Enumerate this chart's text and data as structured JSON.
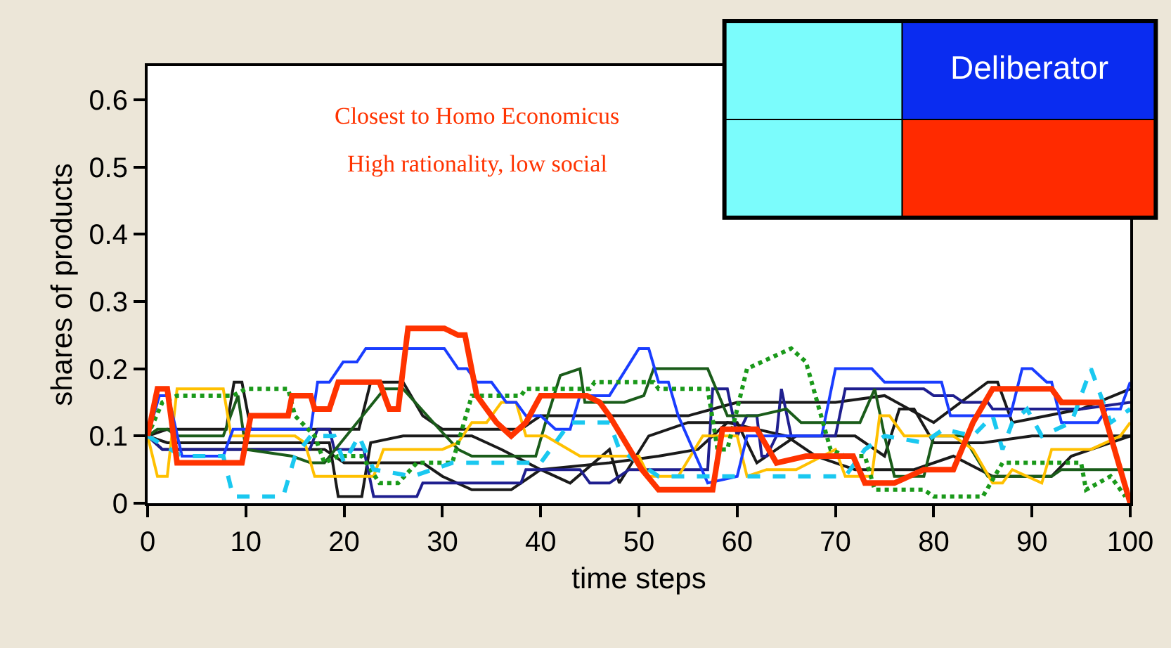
{
  "chart_data": {
    "type": "line",
    "xlabel": "time steps",
    "ylabel": "shares of products",
    "xlim": [
      0,
      100
    ],
    "xticks": [
      0,
      10,
      20,
      30,
      40,
      50,
      60,
      70,
      80,
      90,
      100
    ],
    "ylim": [
      0,
      0.65
    ],
    "yticks": [
      0,
      0.1,
      0.2,
      0.3,
      0.4,
      0.5,
      0.6
    ],
    "marker": "none",
    "line_style": "solid",
    "annotations": [
      "Closest to Homo Economicus",
      "High rationality, low social",
      "Deliberator"
    ],
    "series": [
      {
        "color": "#1a1a1a",
        "x": [
          0,
          2,
          8,
          8.8,
          9.6,
          10.5,
          21.5,
          22.7,
          26,
          28,
          30,
          33,
          38,
          40,
          55,
          60,
          70,
          75,
          80,
          85.5,
          86.5,
          88,
          95,
          100
        ],
        "values": [
          0.1,
          0.11,
          0.11,
          0.18,
          0.18,
          0.11,
          0.11,
          0.18,
          0.18,
          0.13,
          0.11,
          0.11,
          0.11,
          0.13,
          0.13,
          0.15,
          0.15,
          0.16,
          0.12,
          0.18,
          0.18,
          0.12,
          0.14,
          0.17
        ]
      },
      {
        "color": "#1a1a1a",
        "x": [
          0,
          2,
          18.5,
          19.4,
          21.8,
          22.7,
          26,
          33,
          36,
          40,
          43,
          47,
          48,
          51,
          55,
          60,
          62,
          66,
          72,
          75,
          76.5,
          78,
          80,
          85,
          90,
          100
        ],
        "values": [
          0.1,
          0.09,
          0.09,
          0.01,
          0.01,
          0.09,
          0.1,
          0.1,
          0.08,
          0.05,
          0.03,
          0.08,
          0.03,
          0.1,
          0.12,
          0.12,
          0.06,
          0.1,
          0.1,
          0.07,
          0.14,
          0.14,
          0.09,
          0.09,
          0.1,
          0.1
        ]
      },
      {
        "color": "#1a1a1a",
        "x": [
          0,
          1.5,
          18,
          20,
          28,
          30,
          33,
          37,
          40,
          47,
          52,
          56,
          59,
          65,
          68,
          72,
          78,
          82,
          86,
          92,
          94,
          100
        ],
        "values": [
          0.1,
          0.08,
          0.08,
          0.06,
          0.06,
          0.04,
          0.02,
          0.02,
          0.05,
          0.06,
          0.07,
          0.08,
          0.12,
          0.1,
          0.07,
          0.05,
          0.05,
          0.07,
          0.04,
          0.04,
          0.07,
          0.1
        ]
      },
      {
        "color": "#1f1f8f",
        "x": [
          0,
          1.5,
          16.5,
          17.3,
          18.5,
          19,
          22,
          23,
          27.4,
          28,
          38,
          38.5,
          44,
          45,
          47,
          49,
          57,
          57.5,
          59,
          60,
          61,
          62,
          62.5,
          63,
          64,
          64.5,
          65.5,
          70,
          71,
          79,
          80,
          82,
          83,
          85.5,
          86,
          95,
          100
        ],
        "values": [
          0.1,
          0.08,
          0.08,
          0.11,
          0.11,
          0.08,
          0.08,
          0.01,
          0.01,
          0.03,
          0.03,
          0.05,
          0.05,
          0.03,
          0.03,
          0.05,
          0.05,
          0.17,
          0.17,
          0.1,
          0.13,
          0.13,
          0.07,
          0.07,
          0.1,
          0.17,
          0.1,
          0.1,
          0.17,
          0.17,
          0.16,
          0.16,
          0.15,
          0.15,
          0.14,
          0.14,
          0.15
        ]
      },
      {
        "color": "#1a5c1a",
        "x": [
          0,
          1,
          2,
          3,
          7.7,
          9.2,
          10,
          14.7,
          16.6,
          18,
          24.1,
          26,
          29.7,
          31.6,
          33,
          39.5,
          40.5,
          42,
          44,
          44.5,
          48.5,
          50.5,
          51.5,
          57,
          59,
          62,
          65,
          66.5,
          72.5,
          74,
          75,
          76,
          79,
          80,
          83,
          85.5,
          92,
          93,
          100
        ],
        "values": [
          0.1,
          0.11,
          0.11,
          0.1,
          0.1,
          0.16,
          0.08,
          0.07,
          0.06,
          0.06,
          0.17,
          0.17,
          0.11,
          0.08,
          0.07,
          0.07,
          0.12,
          0.19,
          0.2,
          0.15,
          0.15,
          0.16,
          0.2,
          0.2,
          0.13,
          0.13,
          0.14,
          0.12,
          0.12,
          0.17,
          0.1,
          0.04,
          0.04,
          0.1,
          0.1,
          0.04,
          0.04,
          0.05,
          0.05
        ]
      },
      {
        "color": "#ffc000",
        "x": [
          0,
          1,
          2,
          3,
          7.7,
          8.5,
          15,
          16,
          17,
          23,
          24,
          30,
          31.6,
          33,
          34.5,
          36,
          37.5,
          38.5,
          40.5,
          44,
          50,
          51,
          54,
          56.5,
          60,
          61,
          63,
          66,
          70,
          71,
          73.7,
          74.5,
          75.5,
          77,
          82,
          84,
          86,
          87,
          88,
          91,
          92,
          96,
          99,
          100
        ],
        "values": [
          0.1,
          0.04,
          0.04,
          0.17,
          0.17,
          0.1,
          0.1,
          0.09,
          0.04,
          0.04,
          0.08,
          0.08,
          0.09,
          0.12,
          0.12,
          0.15,
          0.15,
          0.1,
          0.1,
          0.07,
          0.07,
          0.04,
          0.04,
          0.1,
          0.1,
          0.04,
          0.05,
          0.05,
          0.08,
          0.04,
          0.04,
          0.13,
          0.13,
          0.1,
          0.1,
          0.08,
          0.03,
          0.03,
          0.05,
          0.03,
          0.08,
          0.08,
          0.1,
          0.12
        ]
      },
      {
        "color": "#1a3dff",
        "x": [
          0,
          1.2,
          2.1,
          3.5,
          7.7,
          8.7,
          16.6,
          17.3,
          18.5,
          19.9,
          21.3,
          22.2,
          30.2,
          31.6,
          32.5,
          33.5,
          35,
          36.5,
          37.5,
          38.5,
          40,
          41.5,
          43,
          44,
          47,
          50,
          51,
          52,
          53,
          54,
          57,
          60,
          61,
          66,
          68.6,
          70,
          73.7,
          75,
          80.8,
          81.7,
          87.8,
          89,
          90,
          91.5,
          92,
          93,
          96.7,
          97.6,
          99,
          100
        ],
        "values": [
          0.1,
          0.16,
          0.16,
          0.07,
          0.07,
          0.11,
          0.11,
          0.18,
          0.18,
          0.21,
          0.21,
          0.23,
          0.23,
          0.2,
          0.2,
          0.18,
          0.18,
          0.15,
          0.15,
          0.13,
          0.13,
          0.11,
          0.11,
          0.16,
          0.16,
          0.23,
          0.23,
          0.18,
          0.18,
          0.13,
          0.03,
          0.04,
          0.1,
          0.1,
          0.1,
          0.2,
          0.2,
          0.18,
          0.18,
          0.13,
          0.13,
          0.2,
          0.2,
          0.18,
          0.18,
          0.12,
          0.12,
          0.14,
          0.14,
          0.18
        ]
      },
      {
        "color": "#1a991a",
        "line_style": "dotted",
        "x": [
          0,
          1.5,
          3,
          8.7,
          10,
          14.3,
          15,
          17,
          18,
          19.4,
          21.8,
          23.6,
          25.5,
          27.4,
          31,
          33,
          38,
          38.5,
          45,
          45.5,
          51.5,
          52,
          57,
          58,
          59,
          61,
          65.5,
          67,
          69.5,
          71,
          73,
          74,
          79,
          80,
          85,
          87,
          95,
          95.5,
          98,
          99.5
        ],
        "values": [
          0.1,
          0.15,
          0.16,
          0.16,
          0.17,
          0.17,
          0.13,
          0.1,
          0.06,
          0.07,
          0.07,
          0.03,
          0.03,
          0.06,
          0.06,
          0.16,
          0.16,
          0.17,
          0.17,
          0.18,
          0.18,
          0.17,
          0.17,
          0.08,
          0.08,
          0.2,
          0.23,
          0.21,
          0.08,
          0.07,
          0.07,
          0.02,
          0.02,
          0.01,
          0.01,
          0.06,
          0.06,
          0.02,
          0.04,
          0.01
        ]
      },
      {
        "color": "#1ac8f0",
        "line_style": "dashed",
        "x": [
          0,
          3.5,
          7.7,
          8.7,
          13.8,
          15,
          16.6,
          19,
          20,
          21.5,
          23,
          27,
          31,
          37,
          40,
          41,
          43,
          47,
          48,
          51,
          52,
          56,
          61,
          65,
          71,
          73,
          75,
          79,
          81,
          84,
          86,
          87,
          88,
          89.5,
          91,
          94,
          96,
          98,
          100
        ],
        "values": [
          0.1,
          0.07,
          0.07,
          0.01,
          0.01,
          0.07,
          0.1,
          0.1,
          0.06,
          0.1,
          0.05,
          0.04,
          0.06,
          0.06,
          0.06,
          0.08,
          0.12,
          0.12,
          0.08,
          0.05,
          0.04,
          0.04,
          0.04,
          0.04,
          0.04,
          0.08,
          0.1,
          0.09,
          0.11,
          0.1,
          0.13,
          0.08,
          0.12,
          0.14,
          0.1,
          0.12,
          0.2,
          0.12,
          0.14
        ]
      },
      {
        "color": "#ff3300",
        "x": [
          0,
          1,
          2,
          3,
          9.6,
          10.5,
          14.3,
          14.7,
          16.6,
          17,
          18.5,
          19.4,
          23.6,
          24.6,
          25.5,
          26.5,
          30.2,
          31.6,
          32.3,
          33.5,
          34.5,
          35.5,
          37,
          38.5,
          40,
          44.7,
          46,
          47,
          50.3,
          52,
          57.5,
          58.5,
          62,
          64,
          67,
          71.8,
          73,
          76,
          79,
          82,
          84,
          86,
          92,
          93,
          97,
          100
        ],
        "values": [
          0.1,
          0.17,
          0.17,
          0.06,
          0.06,
          0.13,
          0.13,
          0.16,
          0.16,
          0.14,
          0.14,
          0.18,
          0.18,
          0.14,
          0.14,
          0.26,
          0.26,
          0.25,
          0.25,
          0.16,
          0.14,
          0.12,
          0.1,
          0.12,
          0.16,
          0.16,
          0.15,
          0.13,
          0.05,
          0.02,
          0.02,
          0.11,
          0.11,
          0.06,
          0.07,
          0.07,
          0.03,
          0.03,
          0.05,
          0.05,
          0.12,
          0.17,
          0.17,
          0.15,
          0.15,
          0
        ]
      }
    ]
  }
}
